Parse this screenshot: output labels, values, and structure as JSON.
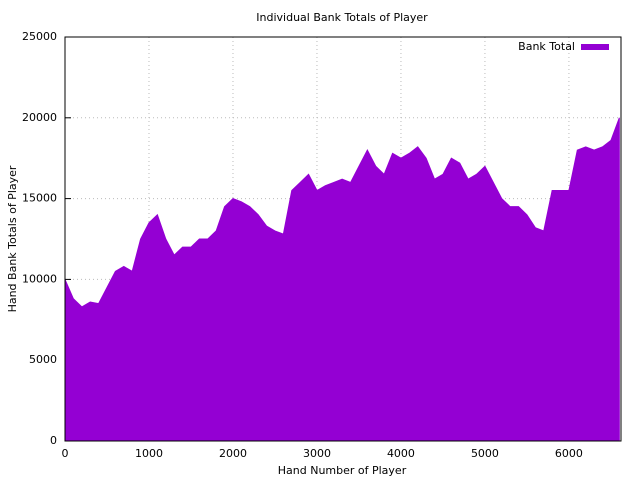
{
  "chart_data": {
    "type": "area",
    "title": "Individual Bank Totals of Player",
    "x_label": "Hand Number of Player",
    "y_label": "Hand Bank Totals of Player",
    "x": [
      0,
      100,
      200,
      300,
      400,
      500,
      600,
      700,
      800,
      900,
      1000,
      1100,
      1200,
      1300,
      1400,
      1500,
      1600,
      1700,
      1800,
      1900,
      2000,
      2100,
      2200,
      2300,
      2400,
      2500,
      2600,
      2700,
      2800,
      2900,
      3000,
      3100,
      3200,
      3300,
      3400,
      3500,
      3600,
      3700,
      3800,
      3900,
      4000,
      4100,
      4200,
      4300,
      4400,
      4500,
      4600,
      4700,
      4800,
      4900,
      5000,
      5100,
      5200,
      5300,
      5400,
      5500,
      5600,
      5700,
      5800,
      5900,
      6000,
      6100,
      6200,
      6300,
      6400,
      6500,
      6600
    ],
    "series": [
      {
        "name": "Bank Total",
        "color": "#9400d3",
        "values": [
          10000,
          8800,
          8300,
          8600,
          8500,
          9500,
          10500,
          10800,
          10500,
          12500,
          13500,
          14000,
          12500,
          11500,
          12000,
          12000,
          12500,
          12500,
          13000,
          14500,
          15000,
          14800,
          14500,
          14000,
          13300,
          13000,
          12800,
          15500,
          16000,
          16500,
          15500,
          15800,
          16000,
          16200,
          16000,
          17000,
          18000,
          17000,
          16500,
          17800,
          17500,
          17800,
          18200,
          17500,
          16200,
          16500,
          17500,
          17200,
          16200,
          16500,
          17000,
          16000,
          15000,
          14500,
          14500,
          14000,
          13200,
          13000,
          15500,
          15500,
          15500,
          18000,
          18200,
          18000,
          18200,
          18600,
          20000
        ]
      }
    ],
    "xlim": [
      0,
      6620
    ],
    "ylim": [
      0,
      25000
    ],
    "xticks": [
      0,
      1000,
      2000,
      3000,
      4000,
      5000,
      6000
    ],
    "yticks": [
      0,
      5000,
      10000,
      15000,
      20000,
      25000
    ],
    "grid": true,
    "legend": "top-right"
  }
}
